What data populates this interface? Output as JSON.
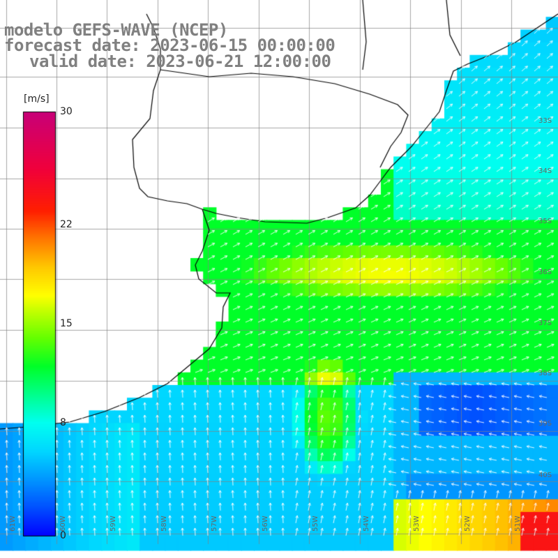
{
  "title": {
    "model": "modelo GEFS-WAVE (NCEP)",
    "forecast": "forecast date: 2023-06-15 00:00:00",
    "valid": "valid date: 2023-06-21 12:00:00"
  },
  "colorbar": {
    "unit": "[m/s]",
    "ticks": [
      "30",
      "22",
      "15",
      "8",
      "0"
    ],
    "tick_values": [
      30,
      22,
      15,
      8,
      0
    ]
  },
  "map": {
    "lat_labels": [
      "33S",
      "34S",
      "35S",
      "36S",
      "37S",
      "38S",
      "39S",
      "40S"
    ],
    "lon_labels": [
      "61W",
      "60W",
      "59W",
      "58W",
      "57W",
      "56W",
      "55W",
      "54W",
      "53W",
      "52W",
      "51W"
    ],
    "field": "wind speed with direction arrows",
    "colors": {
      "land": "#ffffff",
      "coast": "#000000",
      "grid": "#a0a0a0",
      "arrows": "#ffffff"
    }
  }
}
